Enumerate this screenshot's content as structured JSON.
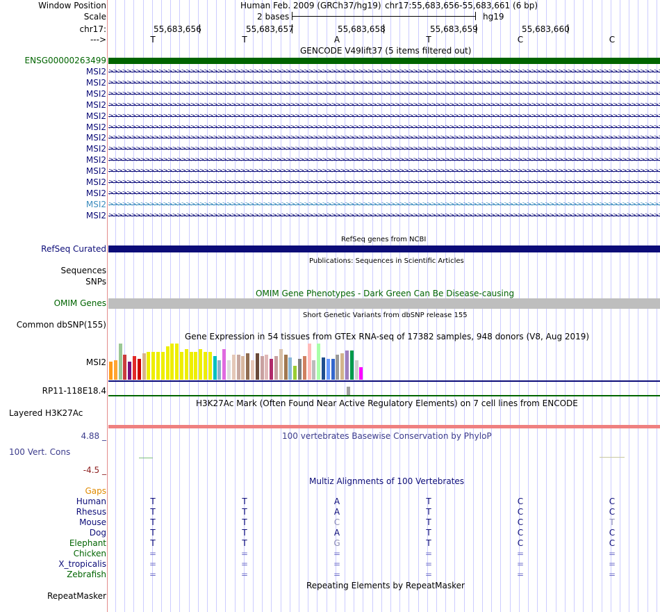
{
  "header": {
    "labels": {
      "window_position": "Window Position",
      "scale": "Scale",
      "chrom": "chr17:",
      "strand": "--->"
    },
    "assembly_desc": "Human Feb. 2009 (GRCh37/hg19)",
    "position": "chr17:55,683,656-55,683,661 (6 bp)",
    "scale_text": "2 bases",
    "db": "hg19",
    "ruler_ticks": [
      "55,683,656",
      "55,683,657",
      "55,683,658",
      "55,683,659",
      "55,683,660"
    ],
    "bases": [
      "T",
      "T",
      "A",
      "T",
      "C",
      "C"
    ]
  },
  "gencode": {
    "title": "GENCODE V49lift37 (5 items filtered out)",
    "gene_label": "ENSG00000263499",
    "transcripts": [
      "MSI2",
      "MSI2",
      "MSI2",
      "MSI2",
      "MSI2",
      "MSI2",
      "MSI2",
      "MSI2",
      "MSI2",
      "MSI2",
      "MSI2",
      "MSI2",
      "MSI2",
      "MSI2"
    ],
    "highlight_index": 12
  },
  "refseq": {
    "title": "RefSeq genes from NCBI",
    "label": "RefSeq Curated"
  },
  "publications": {
    "title": "Publications: Sequences in Scientific Articles",
    "label_1": "Sequences",
    "label_2": "SNPs"
  },
  "omim": {
    "title": "OMIM Gene Phenotypes - Dark Green Can Be Disease-causing",
    "label": "OMIM Genes"
  },
  "dbsnp": {
    "title": "Short Genetic Variants from dbSNP release 155",
    "label": "Common dbSNP(155)"
  },
  "gtex": {
    "title": "Gene Expression in 54 tissues from GTEx RNA-seq of 17382 samples, 948 donors (V8, Aug 2019)",
    "gene_1": "MSI2",
    "gene_2": "RP11-118E18.4"
  },
  "h3k27ac": {
    "title": "H3K27Ac Mark (Often Found Near Active Regulatory Elements) on 7 cell lines from ENCODE",
    "label": "Layered H3K27Ac"
  },
  "phylop": {
    "title": "100 vertebrates Basewise Conservation by PhyloP",
    "label": "100 Vert. Cons",
    "max": "4.88 _",
    "min": "-4.5 _"
  },
  "multiz": {
    "title": "Multiz Alignments of 100 Vertebrates",
    "gaps_label": "Gaps",
    "species": [
      {
        "name": "Human",
        "bases": [
          "T",
          "T",
          "A",
          "T",
          "C",
          "C"
        ]
      },
      {
        "name": "Rhesus",
        "bases": [
          "T",
          "T",
          "A",
          "T",
          "C",
          "C"
        ]
      },
      {
        "name": "Mouse",
        "bases": [
          "T",
          "T",
          "C",
          "T",
          "C",
          "T"
        ]
      },
      {
        "name": "Dog",
        "bases": [
          "T",
          "T",
          "A",
          "T",
          "C",
          "C"
        ]
      },
      {
        "name": "Elephant",
        "bases": [
          "T",
          "T",
          "G",
          "T",
          "C",
          "C"
        ]
      },
      {
        "name": "Chicken",
        "bases": [
          "=",
          "=",
          "=",
          "=",
          "=",
          "="
        ]
      },
      {
        "name": "X_tropicalis",
        "bases": [
          "=",
          "=",
          "=",
          "=",
          "=",
          "="
        ]
      },
      {
        "name": "Zebrafish",
        "bases": [
          "=",
          "=",
          "=",
          "=",
          "=",
          "="
        ]
      }
    ]
  },
  "repeatmasker": {
    "title": "Repeating Elements by RepeatMasker",
    "label": "RepeatMasker"
  },
  "colors": {
    "guide": "#ccccff",
    "gencode_green": "#006400",
    "refseq_navy": "#0c0c78",
    "omim_green": "#006400",
    "omim_gray": "#bebebe",
    "navy_text": "#0c0c78",
    "highlight_text": "#3c8cbe",
    "phylop": "#3c3c8c",
    "phylop_min": "#8c1e1e",
    "gaps": "#e08a00",
    "h3k27": "#ef8080",
    "gtex_line": "#0c0c78",
    "gtex_line2": "#006400"
  }
}
